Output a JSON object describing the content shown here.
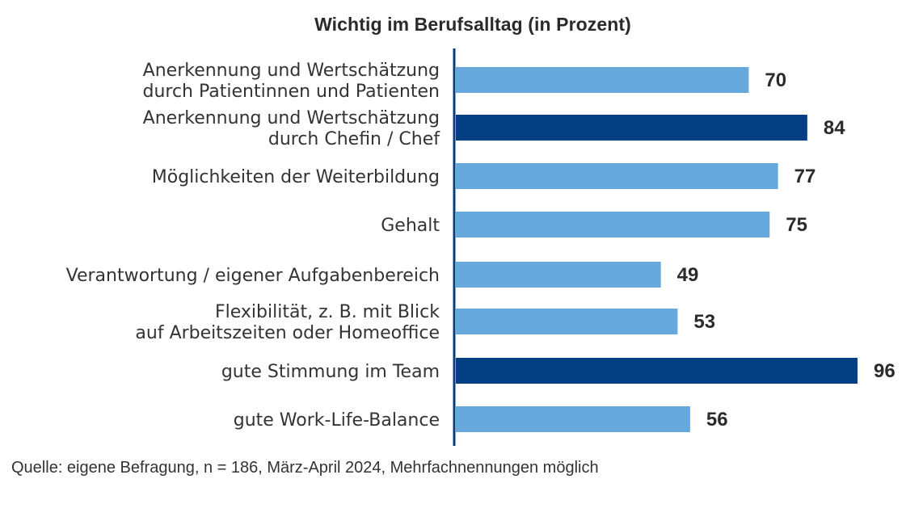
{
  "chart_data": {
    "type": "bar",
    "orientation": "horizontal",
    "title": "Wichtig im Berufsalltag (in Prozent)",
    "xlabel": "",
    "ylabel": "",
    "xlim": [
      0,
      100
    ],
    "grid": false,
    "legend": null,
    "categories": [
      [
        "Anerkennung und Wertschätzung",
        "durch Patientinnen und Patienten"
      ],
      [
        "Anerkennung und Wertschätzung",
        "durch Chefin / Chef"
      ],
      [
        "Möglichkeiten der Weiterbildung"
      ],
      [
        "Gehalt"
      ],
      [
        "Verantwortung / eigener Aufgabenbereich"
      ],
      [
        "Flexibilität, z. B. mit Blick",
        "auf Arbeitszeiten oder Homeoffice"
      ],
      [
        "gute Stimmung im Team"
      ],
      [
        "gute Work-Life-Balance"
      ]
    ],
    "values": [
      70,
      84,
      77,
      75,
      49,
      53,
      96,
      56
    ],
    "highlighted": [
      false,
      true,
      false,
      false,
      false,
      false,
      true,
      false
    ],
    "colors": {
      "default": "#67A9DD",
      "highlight": "#043F84",
      "axis": "#0A3D7C"
    },
    "source": "Quelle: eigene Befragung, n = 186, März-April 2024, Mehrfachnennungen möglich"
  }
}
